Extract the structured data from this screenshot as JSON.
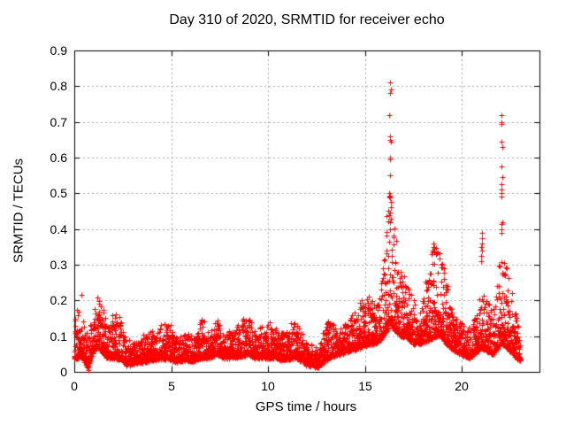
{
  "chart_data": {
    "type": "scatter",
    "title": "Day 310 of 2020, SRMTID for receiver echo",
    "xlabel": "GPS time / hours",
    "ylabel": "SRMTID / TECUs",
    "xlim": [
      0,
      24
    ],
    "ylim": [
      0,
      0.9
    ],
    "xticks": [
      0,
      5,
      10,
      15,
      20
    ],
    "xticklabels": [
      "0",
      "5",
      "10",
      "15",
      "20"
    ],
    "yticks": [
      0,
      0.1,
      0.2,
      0.3,
      0.4,
      0.5,
      0.6,
      0.7,
      0.8,
      0.9
    ],
    "yticklabels": [
      "0",
      "0.1",
      "0.2",
      "0.3",
      "0.4",
      "0.5",
      "0.6",
      "0.7",
      "0.8",
      "0.9"
    ],
    "grid": true,
    "legend": null,
    "marker": "plus",
    "marker_color": "#ff0000",
    "grid_color": "#a8a8a8",
    "border_color": "#000000",
    "x_start": 0.0,
    "x_end": 23.0,
    "sampling_hours": 0.00833,
    "seed": 2020310,
    "envelope": [
      [
        0.0,
        0.04,
        0.19
      ],
      [
        0.4,
        0.04,
        0.15
      ],
      [
        0.7,
        0.015,
        0.1
      ],
      [
        0.9,
        0.05,
        0.16
      ],
      [
        1.15,
        0.07,
        0.23
      ],
      [
        1.4,
        0.06,
        0.2
      ],
      [
        1.7,
        0.04,
        0.14
      ],
      [
        2.1,
        0.04,
        0.17
      ],
      [
        2.4,
        0.035,
        0.16
      ],
      [
        2.7,
        0.02,
        0.09
      ],
      [
        3.2,
        0.025,
        0.08
      ],
      [
        3.7,
        0.03,
        0.11
      ],
      [
        4.2,
        0.035,
        0.12
      ],
      [
        4.8,
        0.04,
        0.15
      ],
      [
        5.2,
        0.03,
        0.1
      ],
      [
        5.7,
        0.035,
        0.11
      ],
      [
        6.2,
        0.03,
        0.1
      ],
      [
        6.6,
        0.04,
        0.16
      ],
      [
        7.0,
        0.04,
        0.11
      ],
      [
        7.3,
        0.05,
        0.15
      ],
      [
        7.7,
        0.04,
        0.11
      ],
      [
        8.2,
        0.04,
        0.12
      ],
      [
        8.9,
        0.05,
        0.16
      ],
      [
        9.4,
        0.04,
        0.12
      ],
      [
        10.2,
        0.04,
        0.14
      ],
      [
        10.8,
        0.035,
        0.11
      ],
      [
        11.4,
        0.04,
        0.15
      ],
      [
        12.0,
        0.02,
        0.08
      ],
      [
        12.6,
        0.015,
        0.07
      ],
      [
        13.1,
        0.04,
        0.15
      ],
      [
        13.6,
        0.05,
        0.12
      ],
      [
        14.2,
        0.06,
        0.15
      ],
      [
        14.8,
        0.07,
        0.2
      ],
      [
        15.2,
        0.08,
        0.22
      ],
      [
        15.6,
        0.08,
        0.19
      ],
      [
        15.9,
        0.1,
        0.3
      ],
      [
        16.15,
        0.12,
        0.45
      ],
      [
        16.3,
        0.14,
        0.5
      ],
      [
        16.5,
        0.12,
        0.42
      ],
      [
        16.8,
        0.1,
        0.3
      ],
      [
        17.1,
        0.1,
        0.26
      ],
      [
        17.5,
        0.08,
        0.2
      ],
      [
        17.9,
        0.08,
        0.17
      ],
      [
        18.3,
        0.09,
        0.31
      ],
      [
        18.6,
        0.1,
        0.36
      ],
      [
        18.9,
        0.1,
        0.33
      ],
      [
        19.2,
        0.08,
        0.26
      ],
      [
        19.6,
        0.06,
        0.16
      ],
      [
        20.0,
        0.05,
        0.14
      ],
      [
        20.4,
        0.04,
        0.12
      ],
      [
        20.8,
        0.06,
        0.18
      ],
      [
        21.0,
        0.07,
        0.22
      ],
      [
        21.3,
        0.06,
        0.2
      ],
      [
        21.6,
        0.05,
        0.17
      ],
      [
        21.9,
        0.07,
        0.3
      ],
      [
        22.05,
        0.08,
        0.35
      ],
      [
        22.3,
        0.07,
        0.3
      ],
      [
        22.6,
        0.05,
        0.22
      ],
      [
        22.85,
        0.04,
        0.15
      ],
      [
        23.0,
        0.03,
        0.1
      ]
    ],
    "spike_columns": [
      {
        "t": 16.3,
        "values": [
          0.81,
          0.79,
          0.78,
          0.72,
          0.66,
          0.65,
          0.645,
          0.6,
          0.595,
          0.55,
          0.5,
          0.49,
          0.475,
          0.46,
          0.44,
          0.42,
          0.4
        ]
      },
      {
        "t": 22.05,
        "values": [
          0.72,
          0.7,
          0.695,
          0.645,
          0.63,
          0.575,
          0.545,
          0.525,
          0.51,
          0.5,
          0.49,
          0.42,
          0.415,
          0.4,
          0.39
        ]
      },
      {
        "t": 21.0,
        "values": [
          0.39,
          0.375,
          0.36,
          0.35,
          0.34,
          0.325,
          0.31
        ]
      },
      {
        "t": 18.55,
        "values": [
          0.36,
          0.35,
          0.345
        ]
      }
    ],
    "outlier_points": [
      [
        0.75,
        0.004
      ],
      [
        0.35,
        0.215
      ],
      [
        12.4,
        0.012
      ]
    ]
  }
}
